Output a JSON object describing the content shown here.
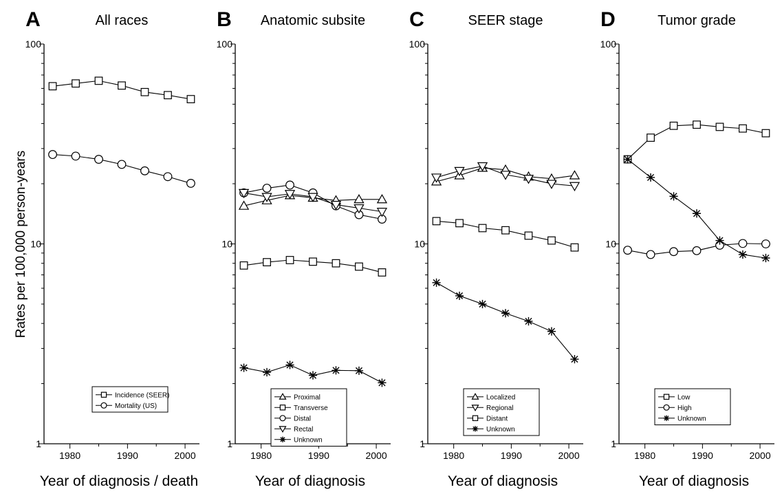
{
  "ylabel": "Rates per 100,000 person-years",
  "chart_data": [
    {
      "type": "line",
      "panel": "A",
      "title": "All races",
      "xlabel": "Year of diagnosis / death",
      "ylabel": "Rates per 100,000 person-years",
      "yscale": "log",
      "ylim": [
        1,
        100
      ],
      "xlim": [
        1975.5,
        2002.5
      ],
      "xticks": [
        1980,
        1990,
        2000
      ],
      "yticks": [
        1,
        10,
        100
      ],
      "grid": false,
      "legend_position": "bottom-center",
      "x": [
        1977,
        1981,
        1985,
        1989,
        1993,
        1997,
        2001
      ],
      "series": [
        {
          "name": "Incidence (SEER)",
          "marker": "square",
          "values": [
            61.5,
            63.5,
            65.5,
            62,
            57.5,
            55.5,
            53
          ]
        },
        {
          "name": "Mortality (US)",
          "marker": "circle",
          "values": [
            28,
            27.5,
            26.5,
            25,
            23.2,
            21.7,
            20.1
          ]
        }
      ]
    },
    {
      "type": "line",
      "panel": "B",
      "title": "Anatomic subsite",
      "xlabel": "Year of diagnosis",
      "yscale": "log",
      "ylim": [
        1,
        100
      ],
      "xlim": [
        1975.5,
        2002.5
      ],
      "xticks": [
        1980,
        1990,
        2000
      ],
      "yticks": [
        1,
        10,
        100
      ],
      "grid": false,
      "legend_position": "bottom-center",
      "x": [
        1977,
        1981,
        1985,
        1989,
        1993,
        1997,
        2001
      ],
      "series": [
        {
          "name": "Proximal",
          "marker": "triangle-up",
          "values": [
            15.5,
            16.5,
            17.5,
            17,
            16.5,
            16.7,
            16.7
          ]
        },
        {
          "name": "Transverse",
          "marker": "square",
          "values": [
            7.8,
            8.1,
            8.3,
            8.15,
            8.0,
            7.7,
            7.2
          ]
        },
        {
          "name": "Distal",
          "marker": "circle",
          "values": [
            18,
            19,
            19.7,
            18,
            15.5,
            14,
            13.3
          ]
        },
        {
          "name": "Rectal",
          "marker": "triangle-down",
          "values": [
            18,
            17.2,
            17.8,
            17.2,
            15.7,
            15.1,
            14.5
          ]
        },
        {
          "name": "Unknown",
          "marker": "asterisk",
          "values": [
            2.4,
            2.28,
            2.48,
            2.2,
            2.33,
            2.32,
            2.02
          ]
        }
      ]
    },
    {
      "type": "line",
      "panel": "C",
      "title": "SEER stage",
      "xlabel": "Year of diagnosis",
      "yscale": "log",
      "ylim": [
        1,
        100
      ],
      "xlim": [
        1975.5,
        2002.5
      ],
      "xticks": [
        1980,
        1990,
        2000
      ],
      "yticks": [
        1,
        10,
        100
      ],
      "grid": false,
      "legend_position": "bottom-center",
      "x": [
        1977,
        1981,
        1985,
        1989,
        1993,
        1997,
        2001
      ],
      "series": [
        {
          "name": "Localized",
          "marker": "triangle-up",
          "values": [
            20.5,
            22,
            24,
            23.5,
            21.7,
            21.2,
            22
          ]
        },
        {
          "name": "Regional",
          "marker": "triangle-down",
          "values": [
            21.5,
            23.2,
            24.5,
            22.2,
            21.2,
            20,
            19.5
          ]
        },
        {
          "name": "Distant",
          "marker": "square",
          "values": [
            13,
            12.7,
            12,
            11.7,
            11,
            10.4,
            9.6
          ]
        },
        {
          "name": "Unknown",
          "marker": "asterisk",
          "values": [
            6.4,
            5.5,
            5.0,
            4.5,
            4.1,
            3.65,
            2.65
          ]
        }
      ]
    },
    {
      "type": "line",
      "panel": "D",
      "title": "Tumor grade",
      "xlabel": "Year of diagnosis",
      "yscale": "log",
      "ylim": [
        1,
        100
      ],
      "xlim": [
        1975.5,
        2002.5
      ],
      "xticks": [
        1980,
        1990,
        2000
      ],
      "yticks": [
        1,
        10,
        100
      ],
      "grid": false,
      "legend_position": "bottom-center",
      "x": [
        1977,
        1981,
        1985,
        1989,
        1993,
        1997,
        2001
      ],
      "series": [
        {
          "name": "Low",
          "marker": "square",
          "values": [
            26.5,
            34,
            39,
            39.5,
            38.5,
            37.8,
            35.8
          ]
        },
        {
          "name": "High",
          "marker": "circle",
          "values": [
            9.3,
            8.85,
            9.15,
            9.25,
            9.85,
            10.05,
            10.0
          ]
        },
        {
          "name": "Unknown",
          "marker": "asterisk",
          "values": [
            26.5,
            21.5,
            17.3,
            14.2,
            10.4,
            8.85,
            8.5
          ]
        }
      ]
    }
  ]
}
